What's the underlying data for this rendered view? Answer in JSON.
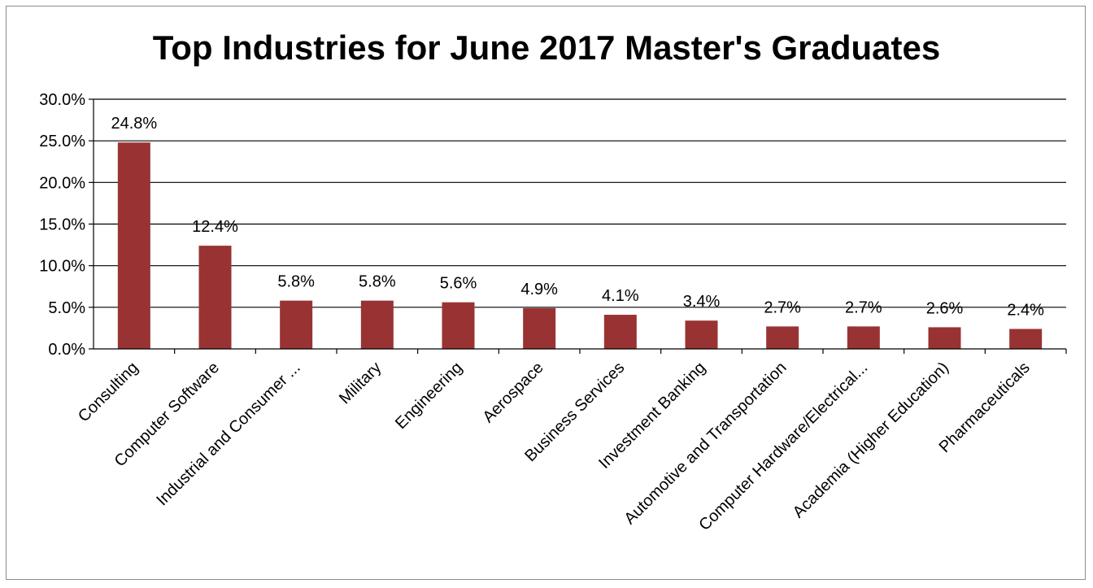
{
  "chart_data": {
    "type": "bar",
    "title": "Top Industries for June 2017 Master's Graduates",
    "xlabel": "",
    "ylabel": "",
    "ylim": [
      0,
      30
    ],
    "y_tick_labels": [
      "0.0%",
      "5.0%",
      "10.0%",
      "15.0%",
      "20.0%",
      "25.0%",
      "30.0%"
    ],
    "y_ticks": [
      0,
      5,
      10,
      15,
      20,
      25,
      30
    ],
    "grid": true,
    "legend": "none",
    "bar_color": "#993333",
    "categories": [
      "Consulting",
      "Computer Software",
      "Industrial and Consumer ...",
      "Military",
      "Engineering",
      "Aerospace",
      "Business Services",
      "Investment Banking",
      "Automotive and Transportation",
      "Computer Hardware/Electrical...",
      "Academia (Higher Education)",
      "Pharmaceuticals"
    ],
    "values": [
      24.8,
      12.4,
      5.8,
      5.8,
      5.6,
      4.9,
      4.1,
      3.4,
      2.7,
      2.7,
      2.6,
      2.4
    ],
    "data_labels": [
      "24.8%",
      "12.4%",
      "5.8%",
      "5.8%",
      "5.6%",
      "4.9%",
      "4.1%",
      "3.4%",
      "2.7%",
      "2.7%",
      "2.6%",
      "2.4%"
    ]
  }
}
